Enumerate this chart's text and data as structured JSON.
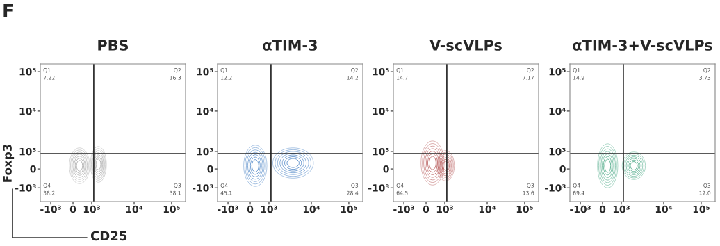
{
  "chart_data": [
    {
      "type": "other",
      "title": "PBS",
      "xlabel": "CD25",
      "ylabel": "Foxp3",
      "categories": [
        "Q1",
        "Q2",
        "Q3",
        "Q4"
      ],
      "values": [
        7.22,
        16.3,
        38.1,
        38.2
      ],
      "data_labels": true,
      "annotations": [
        "F",
        "-10³",
        "0",
        "10³",
        "10⁴",
        "10⁵",
        "-10³",
        "0",
        "10³",
        "10⁴",
        "10⁵"
      ]
    },
    {
      "type": "other",
      "title": "αTIM-3",
      "categories": [
        "Q1",
        "Q2",
        "Q3",
        "Q4"
      ],
      "values": [
        12.2,
        14.2,
        28.4,
        45.1
      ],
      "data_labels": true,
      "annotations": [
        "-10³",
        "0",
        "10³",
        "10⁴",
        "10⁵",
        "-10³",
        "0",
        "10³",
        "10⁴",
        "10⁵"
      ]
    },
    {
      "type": "other",
      "title": "V-scVLPs",
      "categories": [
        "Q1",
        "Q2",
        "Q3",
        "Q4"
      ],
      "values": [
        14.7,
        7.17,
        13.6,
        64.5
      ],
      "data_labels": true,
      "annotations": [
        "-10³",
        "0",
        "10³",
        "10⁴",
        "10⁵",
        "-10³",
        "0",
        "10³",
        "10⁴",
        "10⁵"
      ]
    },
    {
      "type": "other",
      "title": "αTIM-3+V-scVLPs",
      "categories": [
        "Q1",
        "Q2",
        "Q3",
        "Q4"
      ],
      "values": [
        14.9,
        3.73,
        12,
        69.4
      ],
      "value_labels": [
        "14.9",
        "3.73",
        "12.0",
        "69.4"
      ],
      "annotations": [
        "-10³",
        "0",
        "10³",
        "10⁴",
        "10⁵",
        "-10³",
        "0",
        "10³",
        "10⁴",
        "10⁵"
      ]
    }
  ]
}
